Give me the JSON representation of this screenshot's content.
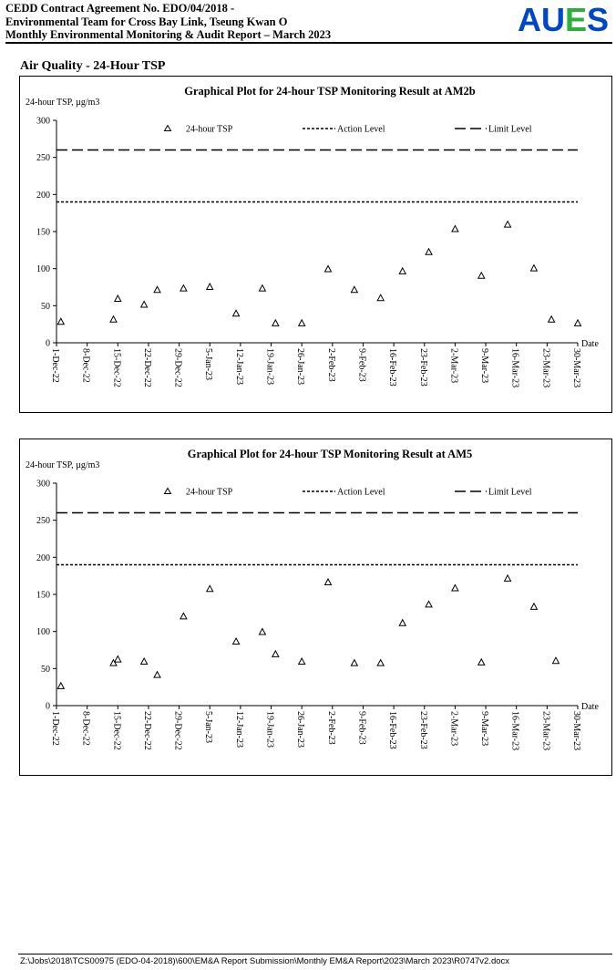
{
  "header": {
    "line1": "CEDD Contract Agreement No. EDO/04/2018 -",
    "line2": "Environmental Team for Cross Bay Link, Tseung Kwan O",
    "line3": "Monthly Environmental Monitoring & Audit Report – March 2023",
    "logo": {
      "letters": [
        "A",
        "U",
        "E",
        "S"
      ],
      "colors": [
        "#0047c8",
        "#0047c8",
        "#2db03a",
        "#0047c8"
      ]
    }
  },
  "section_title": "Air Quality - 24-Hour TSP",
  "footer": {
    "path": "Z:\\Jobs\\2018\\TCS00975 (EDO-04-2018)\\600\\EM&A Report Submission\\Monthly EM&A Report\\2023\\March 2023\\R0747v2.docx"
  },
  "chart_data": [
    {
      "type": "scatter",
      "title": "Graphical Plot for 24-hour TSP Monitoring Result at AM2b",
      "ylabel": "24-hour TSP, µg/m3",
      "xlabel": "Date",
      "ylim": [
        0,
        300
      ],
      "yticks": [
        0,
        50,
        100,
        150,
        200,
        250,
        300
      ],
      "xticks": [
        "1-Dec-22",
        "8-Dec-22",
        "15-Dec-22",
        "22-Dec-22",
        "29-Dec-22",
        "5-Jan-23",
        "12-Jan-23",
        "19-Jan-23",
        "26-Jan-23",
        "2-Feb-23",
        "9-Feb-23",
        "16-Feb-23",
        "23-Feb-23",
        "2-Mar-23",
        "9-Mar-23",
        "16-Mar-23",
        "23-Mar-23",
        "30-Mar-23"
      ],
      "legend": {
        "tsp": "24-hour TSP",
        "action": "Action Level",
        "limit": "Limit Level",
        "position": "top"
      },
      "action_level": 190,
      "limit_level": 260,
      "series": [
        {
          "name": "24-hour TSP",
          "points": [
            {
              "x": "2-Dec-22",
              "y": 28
            },
            {
              "x": "14-Dec-22",
              "y": 31
            },
            {
              "x": "15-Dec-22",
              "y": 59
            },
            {
              "x": "21-Dec-22",
              "y": 51
            },
            {
              "x": "24-Dec-22",
              "y": 71
            },
            {
              "x": "30-Dec-22",
              "y": 73
            },
            {
              "x": "5-Jan-23",
              "y": 75
            },
            {
              "x": "11-Jan-23",
              "y": 39
            },
            {
              "x": "17-Jan-23",
              "y": 73
            },
            {
              "x": "20-Jan-23",
              "y": 26
            },
            {
              "x": "26-Jan-23",
              "y": 26
            },
            {
              "x": "1-Feb-23",
              "y": 99
            },
            {
              "x": "7-Feb-23",
              "y": 71
            },
            {
              "x": "13-Feb-23",
              "y": 60
            },
            {
              "x": "18-Feb-23",
              "y": 96
            },
            {
              "x": "24-Feb-23",
              "y": 122
            },
            {
              "x": "2-Mar-23",
              "y": 153
            },
            {
              "x": "8-Mar-23",
              "y": 90
            },
            {
              "x": "14-Mar-23",
              "y": 159
            },
            {
              "x": "20-Mar-23",
              "y": 100
            },
            {
              "x": "24-Mar-23",
              "y": 31
            },
            {
              "x": "30-Mar-23",
              "y": 26
            }
          ]
        }
      ]
    },
    {
      "type": "scatter",
      "title": "Graphical Plot for 24-hour TSP Monitoring Result at AM5",
      "ylabel": "24-hour TSP, µg/m3",
      "xlabel": "Date",
      "ylim": [
        0,
        300
      ],
      "yticks": [
        0,
        50,
        100,
        150,
        200,
        250,
        300
      ],
      "xticks": [
        "1-Dec-22",
        "8-Dec-22",
        "15-Dec-22",
        "22-Dec-22",
        "29-Dec-22",
        "5-Jan-23",
        "12-Jan-23",
        "19-Jan-23",
        "26-Jan-23",
        "2-Feb-23",
        "9-Feb-23",
        "16-Feb-23",
        "23-Feb-23",
        "2-Mar-23",
        "9-Mar-23",
        "16-Mar-23",
        "23-Mar-23",
        "30-Mar-23"
      ],
      "legend": {
        "tsp": "24-hour TSP",
        "action": "Action Level",
        "limit": "Limit Level",
        "position": "top"
      },
      "action_level": 190,
      "limit_level": 260,
      "series": [
        {
          "name": "24-hour TSP",
          "points": [
            {
              "x": "2-Dec-22",
              "y": 26
            },
            {
              "x": "14-Dec-22",
              "y": 57
            },
            {
              "x": "15-Dec-22",
              "y": 62
            },
            {
              "x": "21-Dec-22",
              "y": 59
            },
            {
              "x": "24-Dec-22",
              "y": 41
            },
            {
              "x": "30-Dec-22",
              "y": 120
            },
            {
              "x": "5-Jan-23",
              "y": 157
            },
            {
              "x": "11-Jan-23",
              "y": 86
            },
            {
              "x": "17-Jan-23",
              "y": 99
            },
            {
              "x": "20-Jan-23",
              "y": 69
            },
            {
              "x": "26-Jan-23",
              "y": 59
            },
            {
              "x": "1-Feb-23",
              "y": 166
            },
            {
              "x": "7-Feb-23",
              "y": 57
            },
            {
              "x": "13-Feb-23",
              "y": 57
            },
            {
              "x": "18-Feb-23",
              "y": 111
            },
            {
              "x": "24-Feb-23",
              "y": 136
            },
            {
              "x": "2-Mar-23",
              "y": 158
            },
            {
              "x": "8-Mar-23",
              "y": 58
            },
            {
              "x": "14-Mar-23",
              "y": 171
            },
            {
              "x": "20-Mar-23",
              "y": 133
            },
            {
              "x": "25-Mar-23",
              "y": 60
            }
          ]
        }
      ]
    }
  ]
}
